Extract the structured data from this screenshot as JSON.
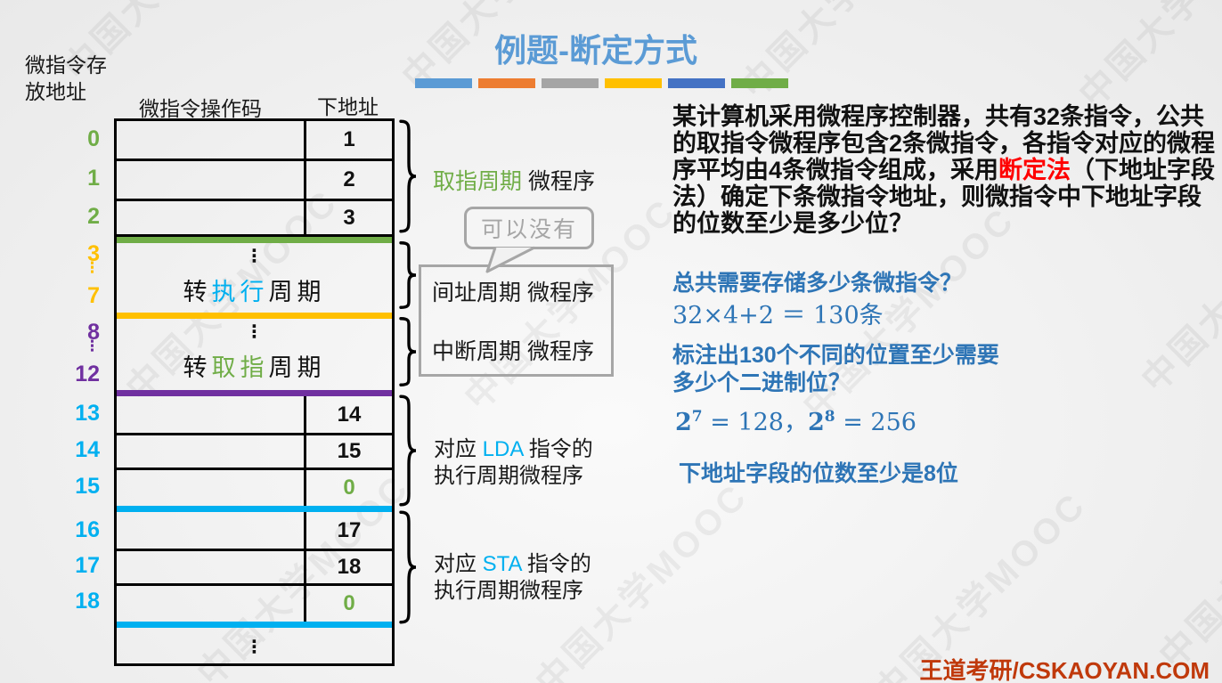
{
  "slide": {
    "title": "例题-断定方式",
    "footer": "王道考研/CSKAOYAN.COM",
    "watermark": "中国大学MOOC"
  },
  "colors": {
    "title_blue": "#5B9BD5",
    "solution_blue": "#2E75B6",
    "highlight_red": "#FF0000",
    "footer_red": "#C0390B",
    "green": "#70AD47",
    "gold": "#FFC000",
    "purple": "#7030A0",
    "cyan": "#00B0F0",
    "gray": "#A6A6A6",
    "bars": [
      "#5B9BD5",
      "#ED7D31",
      "#A5A5A5",
      "#FFC000",
      "#4472C4",
      "#70AD47"
    ]
  },
  "diagram": {
    "addr_label": "微指令存放地址",
    "col_op": "微指令操作码",
    "col_next": "下地址",
    "addr": {
      "a0": "0",
      "a1": "1",
      "a2": "2",
      "a3": "3",
      "dots1": "⋮",
      "a7": "7",
      "a8": "8",
      "dots2": "⋮",
      "a12": "12",
      "a13": "13",
      "a14": "14",
      "a15": "15",
      "a16": "16",
      "a17": "17",
      "a18": "18"
    },
    "next": {
      "r0": "1",
      "r1": "2",
      "r2": "3",
      "r13": "14",
      "r14": "15",
      "r15": "0",
      "r16": "17",
      "r17": "18",
      "r18": "0"
    },
    "sec37": {
      "dots": "⋮",
      "pre": "转",
      "hl": "执行",
      "post": "周期"
    },
    "sec812": {
      "dots": "⋮",
      "pre": "转",
      "hl": "取指",
      "post": "周期"
    },
    "last_dots": "⋮"
  },
  "labels": {
    "fetch_hl": "取指周期",
    "fetch_rest": " 微程序",
    "bubble": "可以没有",
    "indirect_hl": "间址周期",
    "indirect_rest": " 微程序",
    "interrupt_hl": "中断周期",
    "interrupt_rest": " 微程序",
    "lda_pre": "对应 ",
    "lda_hl": "LDA",
    "lda_post": " 指令的",
    "lda_line2": "执行周期微程序",
    "sta_pre": "对应 ",
    "sta_hl": "STA",
    "sta_post": " 指令的",
    "sta_line2": "执行周期微程序"
  },
  "problem": {
    "line1": "某计算机采用微程序控制器，共有32条指令，公共",
    "line2": "的取指令微程序包含2条微指令，各指令对应的微程",
    "line3_pre": "序平均由4条微指令组成，采用",
    "line3_red": "断定法",
    "line3_post": "（下地址字段",
    "line4": "法）确定下条微指令地址，则微指令中下地址字段",
    "line5": "的位数至少是多少位？"
  },
  "solution": {
    "q1": "总共需要存储多少条微指令？",
    "calc1": "32×4+2 ＝ 130条",
    "q2_pre": "标注出130个不同的位置",
    "q2_hl": "至少",
    "q2_post": "需要",
    "q2_line2": "多少个二进制位？",
    "calc2_base1": "2",
    "calc2_sup1": "7",
    "calc2_mid": " = 128，",
    "calc2_base2": "2",
    "calc2_sup2": "8",
    "calc2_end": " = 256",
    "answer_pre": "下地址字段的位数至少是",
    "answer_hl": "8",
    "answer_post": "位"
  }
}
